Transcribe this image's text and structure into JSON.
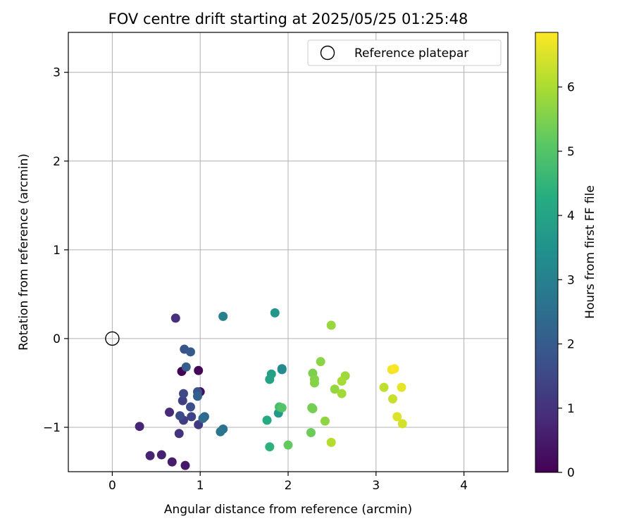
{
  "chart_data": {
    "type": "scatter",
    "title": "FOV centre drift starting at 2025/05/25 01:25:48",
    "xlabel": "Angular distance from reference (arcmin)",
    "ylabel": "Rotation from reference (arcmin)",
    "xlim": [
      -0.5,
      4.5
    ],
    "ylim": [
      -1.5,
      3.45
    ],
    "xticks": [
      0,
      1,
      2,
      3,
      4
    ],
    "yticks": [
      -1,
      0,
      1,
      2,
      3
    ],
    "xtick_labels": [
      "0",
      "1",
      "2",
      "3",
      "4"
    ],
    "ytick_labels": [
      "−1",
      "0",
      "1",
      "2",
      "3"
    ],
    "grid": true,
    "legend": {
      "placement": "top-right",
      "entries": [
        "Reference platepar"
      ]
    },
    "reference_point": {
      "x": 0,
      "y": 0,
      "label": "Reference platepar"
    },
    "colorbar": {
      "label": "Hours from first FF file",
      "colormap": "viridis",
      "range": [
        0,
        6.85
      ],
      "ticks": [
        0,
        1,
        2,
        3,
        4,
        5,
        6
      ],
      "tick_labels": [
        "0",
        "1",
        "2",
        "3",
        "4",
        "5",
        "6"
      ]
    },
    "points": [
      {
        "x": 0.79,
        "y": -0.37,
        "h": 0.05
      },
      {
        "x": 0.98,
        "y": -0.36,
        "h": 0.1
      },
      {
        "x": 1.0,
        "y": -0.6,
        "h": 0.25
      },
      {
        "x": 0.83,
        "y": -1.43,
        "h": 0.45
      },
      {
        "x": 0.68,
        "y": -1.39,
        "h": 0.55
      },
      {
        "x": 0.56,
        "y": -1.31,
        "h": 0.65
      },
      {
        "x": 0.43,
        "y": -1.32,
        "h": 0.7
      },
      {
        "x": 0.31,
        "y": -0.99,
        "h": 0.75
      },
      {
        "x": 0.65,
        "y": -0.83,
        "h": 0.85
      },
      {
        "x": 0.72,
        "y": 0.23,
        "h": 0.95
      },
      {
        "x": 0.76,
        "y": -1.07,
        "h": 1.05
      },
      {
        "x": 0.98,
        "y": -0.97,
        "h": 1.15
      },
      {
        "x": 0.81,
        "y": -0.92,
        "h": 1.25
      },
      {
        "x": 0.8,
        "y": -0.7,
        "h": 1.3
      },
      {
        "x": 0.9,
        "y": -0.88,
        "h": 1.4
      },
      {
        "x": 0.81,
        "y": -0.62,
        "h": 1.5
      },
      {
        "x": 0.77,
        "y": -0.87,
        "h": 1.6
      },
      {
        "x": 0.89,
        "y": -0.77,
        "h": 1.7
      },
      {
        "x": 0.97,
        "y": -0.6,
        "h": 1.8
      },
      {
        "x": 0.82,
        "y": -0.12,
        "h": 1.85
      },
      {
        "x": 0.89,
        "y": -0.15,
        "h": 1.95
      },
      {
        "x": 0.84,
        "y": -0.32,
        "h": 2.05
      },
      {
        "x": 0.97,
        "y": -0.65,
        "h": 2.15
      },
      {
        "x": 1.05,
        "y": -0.88,
        "h": 2.3
      },
      {
        "x": 1.03,
        "y": -0.9,
        "h": 2.4
      },
      {
        "x": 1.26,
        "y": -1.02,
        "h": 2.6
      },
      {
        "x": 1.23,
        "y": -1.05,
        "h": 2.7
      },
      {
        "x": 1.26,
        "y": 0.25,
        "h": 3.0
      },
      {
        "x": 1.93,
        "y": -0.34,
        "h": 3.2
      },
      {
        "x": 1.93,
        "y": -0.35,
        "h": 3.3
      },
      {
        "x": 1.85,
        "y": 0.29,
        "h": 3.6
      },
      {
        "x": 1.89,
        "y": -0.84,
        "h": 3.7
      },
      {
        "x": 1.81,
        "y": -0.4,
        "h": 3.9
      },
      {
        "x": 1.79,
        "y": -0.46,
        "h": 4.0
      },
      {
        "x": 1.76,
        "y": -0.92,
        "h": 4.2
      },
      {
        "x": 1.79,
        "y": -1.22,
        "h": 4.4
      },
      {
        "x": 1.9,
        "y": -0.77,
        "h": 4.8
      },
      {
        "x": 1.93,
        "y": -0.78,
        "h": 5.0
      },
      {
        "x": 2.0,
        "y": -1.2,
        "h": 5.2
      },
      {
        "x": 2.26,
        "y": -1.06,
        "h": 5.3
      },
      {
        "x": 2.27,
        "y": -0.78,
        "h": 5.35
      },
      {
        "x": 2.28,
        "y": -0.79,
        "h": 5.4
      },
      {
        "x": 2.28,
        "y": -0.39,
        "h": 5.5
      },
      {
        "x": 2.3,
        "y": -0.46,
        "h": 5.55
      },
      {
        "x": 2.3,
        "y": -0.5,
        "h": 5.6
      },
      {
        "x": 2.37,
        "y": -0.26,
        "h": 5.65
      },
      {
        "x": 2.42,
        "y": -0.93,
        "h": 5.7
      },
      {
        "x": 2.53,
        "y": -0.57,
        "h": 5.75
      },
      {
        "x": 2.49,
        "y": 0.15,
        "h": 5.8
      },
      {
        "x": 2.65,
        "y": -0.42,
        "h": 5.85
      },
      {
        "x": 2.61,
        "y": -0.62,
        "h": 5.9
      },
      {
        "x": 2.61,
        "y": -0.48,
        "h": 5.95
      },
      {
        "x": 2.49,
        "y": -1.17,
        "h": 6.1
      },
      {
        "x": 3.09,
        "y": -0.55,
        "h": 6.2
      },
      {
        "x": 3.19,
        "y": -0.68,
        "h": 6.3
      },
      {
        "x": 3.3,
        "y": -0.96,
        "h": 6.4
      },
      {
        "x": 3.24,
        "y": -0.88,
        "h": 6.5
      },
      {
        "x": 3.29,
        "y": -0.55,
        "h": 6.6
      },
      {
        "x": 3.18,
        "y": -0.35,
        "h": 6.7
      },
      {
        "x": 3.21,
        "y": -0.34,
        "h": 6.8
      }
    ]
  }
}
